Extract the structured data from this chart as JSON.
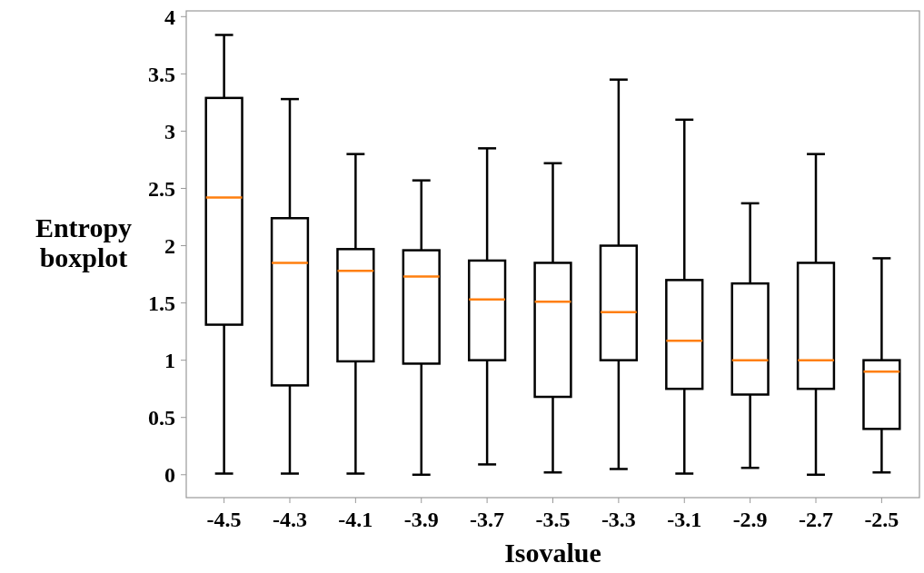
{
  "chart_data": {
    "type": "box",
    "xlabel": "Isovalue",
    "ylabel": "Entropy boxplot",
    "categories": [
      "-4.5",
      "-4.3",
      "-4.1",
      "-3.9",
      "-3.7",
      "-3.5",
      "-3.3",
      "-3.1",
      "-2.9",
      "-2.7",
      "-2.5"
    ],
    "ylim": [
      -0.2,
      4.05
    ],
    "yticks": [
      0,
      0.5,
      1,
      1.5,
      2,
      2.5,
      3,
      3.5,
      4
    ],
    "grid": false,
    "series": [
      {
        "color": "#000000",
        "boxes": [
          {
            "low": 0.01,
            "q1": 1.31,
            "median": 2.42,
            "q3": 3.29,
            "high": 3.84
          },
          {
            "low": 0.01,
            "q1": 0.78,
            "median": 1.85,
            "q3": 2.24,
            "high": 3.28
          },
          {
            "low": 0.01,
            "q1": 0.99,
            "median": 1.78,
            "q3": 1.97,
            "high": 2.8
          },
          {
            "low": 0,
            "q1": 0.97,
            "median": 1.73,
            "q3": 1.96,
            "high": 2.57
          },
          {
            "low": 0.09,
            "q1": 1,
            "median": 1.53,
            "q3": 1.87,
            "high": 2.85
          },
          {
            "low": 0.02,
            "q1": 0.68,
            "median": 1.51,
            "q3": 1.85,
            "high": 2.72
          },
          {
            "low": 0.05,
            "q1": 1,
            "median": 1.42,
            "q3": 2,
            "high": 3.45
          },
          {
            "low": 0.01,
            "q1": 0.75,
            "median": 1.17,
            "q3": 1.7,
            "high": 3.1
          },
          {
            "low": 0.06,
            "q1": 0.7,
            "median": 1,
            "q3": 1.67,
            "high": 2.37
          },
          {
            "low": 0,
            "q1": 0.75,
            "median": 1,
            "q3": 1.85,
            "high": 2.8
          },
          {
            "low": 0.02,
            "q1": 0.4,
            "median": 0.9,
            "q3": 1,
            "high": 1.89
          }
        ]
      }
    ]
  }
}
